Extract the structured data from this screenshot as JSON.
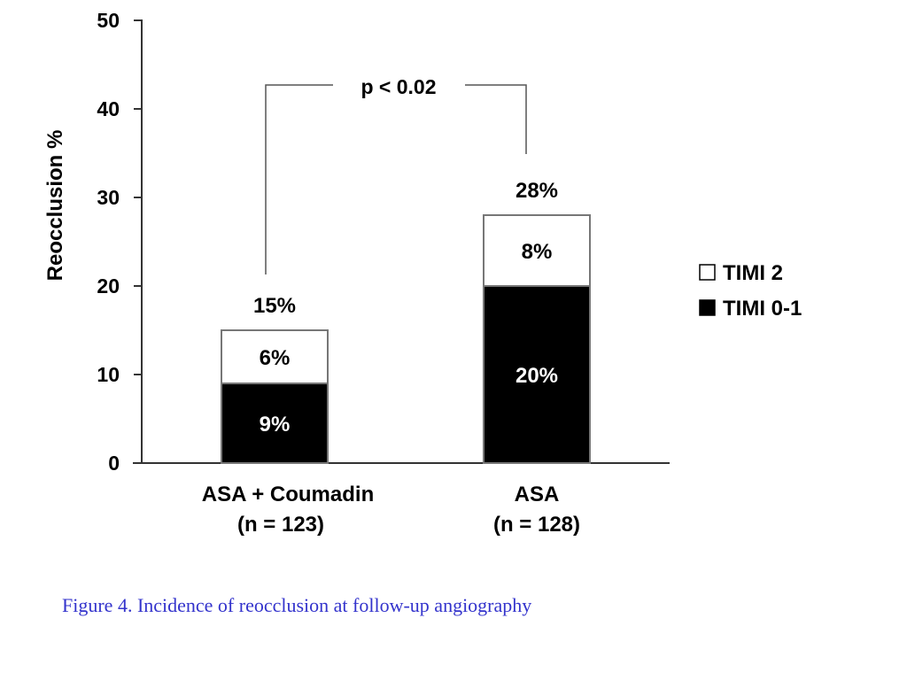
{
  "chart_data": {
    "type": "bar",
    "stacked": true,
    "categories": [
      "ASA + Coumadin",
      "ASA"
    ],
    "category_sublabels": [
      "(n = 123)",
      "(n = 128)"
    ],
    "series": [
      {
        "name": "TIMI 0-1",
        "values": [
          9,
          20
        ],
        "labels": [
          "9%",
          "20%"
        ],
        "color": "#000000"
      },
      {
        "name": "TIMI 2",
        "values": [
          6,
          8
        ],
        "labels": [
          "6%",
          "8%"
        ],
        "color": "#ffffff"
      }
    ],
    "totals": [
      "15%",
      "28%"
    ],
    "ylabel": "Reocclusion %",
    "ylim": [
      0,
      50
    ],
    "yticks": [
      "0",
      "10",
      "20",
      "30",
      "40",
      "50"
    ],
    "annotation": "p < 0.02",
    "legend": {
      "position": "right",
      "items": [
        "TIMI 2",
        "TIMI 0-1"
      ]
    },
    "grid": false
  },
  "caption": "Figure 4. Incidence of reocclusion at follow-up angiography"
}
